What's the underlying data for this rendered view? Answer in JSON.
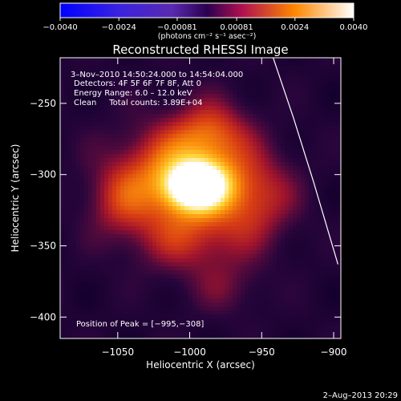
{
  "chart_data": {
    "type": "heatmap",
    "title": "Reconstructed RHESSI Image",
    "xlabel": "Heliocentric X (arcsec)",
    "ylabel": "Heliocentric Y (arcsec)",
    "xlim": [
      -1090,
      -895
    ],
    "ylim": [
      -415,
      -218
    ],
    "x_ticks": [
      -1050,
      -1000,
      -950,
      -900
    ],
    "y_ticks": [
      -250,
      -300,
      -350,
      -400
    ],
    "x_tick_labels": [
      "−1050",
      "−1000",
      "−950",
      "−900"
    ],
    "y_tick_labels": [
      "−250",
      "−300",
      "−350",
      "−400"
    ],
    "colorbar": {
      "range": [
        -0.004,
        0.004
      ],
      "ticks": [
        -0.004,
        -0.0024,
        -0.00081,
        0.00081,
        0.0024,
        0.004
      ],
      "tick_labels": [
        "−0.0040",
        "−0.0024",
        "−0.00081",
        "0.00081",
        "0.0024",
        "0.0040"
      ],
      "units": "(photons cm⁻² s⁻¹ asec⁻²)",
      "colors": [
        "#0000ff",
        "#6a3dd0",
        "#2a0050",
        "#b01050",
        "#ff8800",
        "#ffffff"
      ]
    },
    "annotations": {
      "time": "3–Nov–2010 14:50:24.000 to 14:54:04.000",
      "detectors": "Detectors: 4F 5F 6F 7F 8F, Att 0",
      "energy": "Energy Range: 6.0 – 12.0 keV",
      "clean": "Clean     Total counts: 3.89E+04",
      "peak": "Position of Peak = [−995,−308]"
    },
    "peak": [
      -995,
      -308
    ],
    "limb_curve": [
      [
        -942,
        -218
      ],
      [
        -928,
        -260
      ],
      [
        -914,
        -305
      ],
      [
        -897,
        -363
      ]
    ],
    "sources": [
      {
        "x": -995,
        "y": -308,
        "sx": 14,
        "sy": 11,
        "amp": 1.0
      },
      {
        "x": -1010,
        "y": -300,
        "sx": 30,
        "sy": 24,
        "amp": 0.55
      },
      {
        "x": -985,
        "y": -270,
        "sx": 18,
        "sy": 16,
        "amp": 0.35
      },
      {
        "x": -955,
        "y": -315,
        "sx": 20,
        "sy": 22,
        "amp": 0.35
      },
      {
        "x": -1000,
        "y": -345,
        "sx": 28,
        "sy": 18,
        "amp": 0.3
      },
      {
        "x": -1050,
        "y": -320,
        "sx": 16,
        "sy": 18,
        "amp": 0.22
      },
      {
        "x": -975,
        "y": -380,
        "sx": 18,
        "sy": 14,
        "amp": 0.15
      }
    ]
  },
  "footer": {
    "date": "2–Aug–2013 20:29"
  }
}
